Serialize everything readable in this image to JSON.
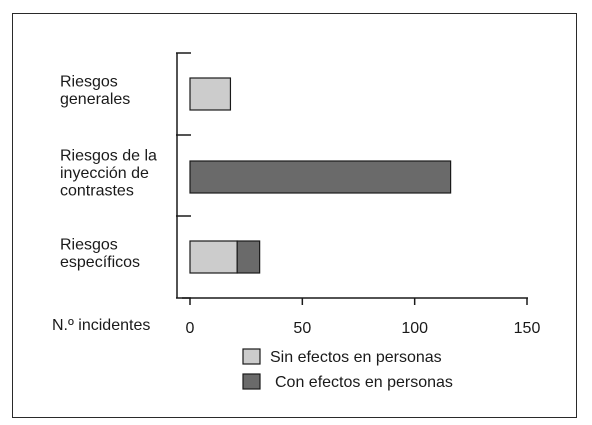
{
  "chart_data": {
    "type": "bar",
    "orientation": "horizontal",
    "stacked": true,
    "categories": [
      [
        "Riesgos",
        "generales"
      ],
      [
        "Riesgos de la",
        "inyección de",
        "contrastes"
      ],
      [
        "Riesgos",
        "específicos"
      ]
    ],
    "series": [
      {
        "name": "Sin efectos en personas",
        "color": "#cccccc",
        "values": [
          18,
          0,
          21
        ]
      },
      {
        "name": "Con efectos en personas",
        "color": "#6a6a6a",
        "values": [
          0,
          116,
          10
        ]
      }
    ],
    "xlabel": "N.º incidentes",
    "xlim": [
      0,
      150
    ],
    "xticks": [
      0,
      50,
      100,
      150
    ],
    "grid": false,
    "legend_placement": "bottom"
  }
}
